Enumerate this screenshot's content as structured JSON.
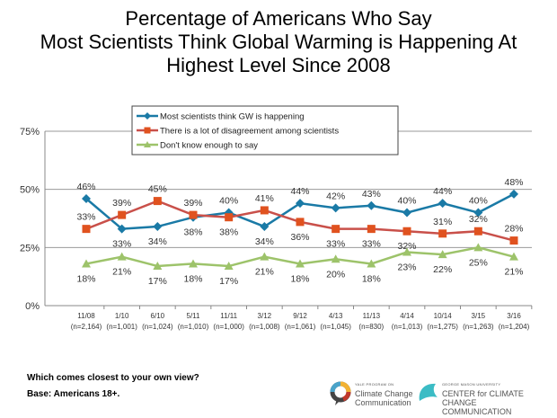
{
  "chart_data": {
    "type": "line",
    "title": [
      "Percentage of Americans Who Say",
      "Most Scientists Think Global Warming is Happening At",
      "Highest Level Since 2008"
    ],
    "categories": [
      "11/08",
      "1/10",
      "6/10",
      "5/11",
      "11/11",
      "3/12",
      "9/12",
      "4/13",
      "11/13",
      "4/14",
      "10/14",
      "3/15",
      "3/16"
    ],
    "sample_sizes": [
      "(n=2,164)",
      "(n=1,001)",
      "(n=1,024)",
      "(n=1,010)",
      "(n=1,000)",
      "(n=1,008)",
      "(n=1,061)",
      "(n=1,045)",
      "(n=830)",
      "(n=1,013)",
      "(n=1,275)",
      "(n=1,263)",
      "(n=1,204)"
    ],
    "ylim": [
      0,
      75
    ],
    "yticks": [
      0,
      25,
      50,
      75
    ],
    "ytick_labels": [
      "0%",
      "25%",
      "50%",
      "75%"
    ],
    "grid": true,
    "legend_position": "top-center",
    "series": [
      {
        "name": "Most scientists think GW is happening",
        "color": "#1a7aa6",
        "marker": "diamond",
        "values": [
          46,
          33,
          34,
          38,
          40,
          34,
          44,
          42,
          43,
          40,
          44,
          40,
          48
        ]
      },
      {
        "name": "There is a lot of disagreement among scientists",
        "color": "#e0521f",
        "line_color": "#c9504a",
        "marker": "square",
        "values": [
          33,
          39,
          45,
          39,
          38,
          41,
          36,
          33,
          33,
          32,
          31,
          32,
          28
        ]
      },
      {
        "name": "Don't know enough to say",
        "color": "#9dc36a",
        "marker": "triangle",
        "values": [
          18,
          21,
          17,
          18,
          17,
          21,
          18,
          20,
          18,
          23,
          22,
          25,
          21
        ]
      }
    ]
  },
  "footer": {
    "question": "Which comes closest to your own view?",
    "base": "Base: Americans 18+."
  },
  "logos": {
    "yale_small": "YALE PROGRAM ON",
    "yale_line1": "Climate Change",
    "yale_line2": "Communication",
    "gmu_small": "GEORGE MASON UNIVERSITY",
    "gmu_line1": "CENTER for CLIMATE CHANGE",
    "gmu_line2": "COMMUNICATION"
  }
}
